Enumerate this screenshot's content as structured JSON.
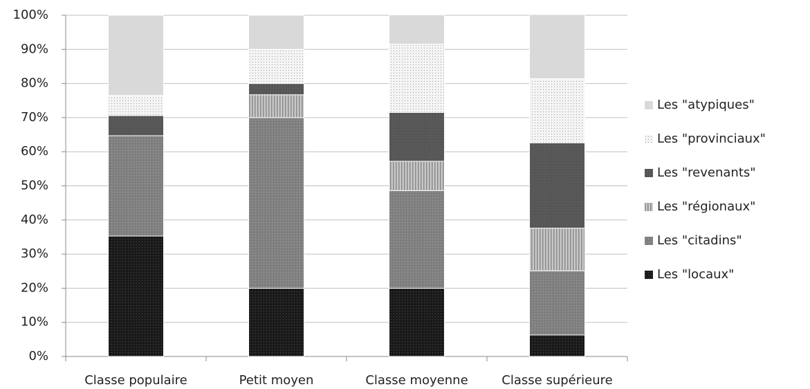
{
  "chart_data": {
    "type": "stacked_bar",
    "categories": [
      "Classe populaire",
      "Petit moyen",
      "Classe moyenne",
      "Classe supérieure"
    ],
    "series": [
      {
        "name": "Les \"locaux\"",
        "color": "#1a1a1a",
        "values": [
          35.3,
          20,
          20,
          6.3
        ]
      },
      {
        "name": "Les \"citadins\"",
        "color": "#7f7f7f",
        "values": [
          29.4,
          50,
          28.6,
          18.8
        ]
      },
      {
        "name": "Les \"régionaux\"",
        "color": "#c8c8c8",
        "values": [
          0,
          6.7,
          8.6,
          12.5
        ]
      },
      {
        "name": "Les \"revenants\"",
        "color": "#595959",
        "values": [
          5.9,
          3.3,
          14.3,
          25
        ]
      },
      {
        "name": "Les \"provinciaux\"",
        "color": "#f4f4f4",
        "values": [
          5.9,
          10,
          20,
          18.8
        ]
      },
      {
        "name": "Les \"atypiques\"",
        "color": "#d9d9d9",
        "values": [
          23.5,
          10,
          8.6,
          18.8
        ]
      }
    ],
    "ylim": [
      0,
      100
    ],
    "yticks": [
      {
        "value": 0,
        "label": "0%"
      },
      {
        "value": 10,
        "label": "10%"
      },
      {
        "value": 20,
        "label": "20%"
      },
      {
        "value": 30,
        "label": "30%"
      },
      {
        "value": 40,
        "label": "40%"
      },
      {
        "value": 50,
        "label": "50%"
      },
      {
        "value": 60,
        "label": "60%"
      },
      {
        "value": 70,
        "label": "70%"
      },
      {
        "value": 80,
        "label": "80%"
      },
      {
        "value": 90,
        "label": "90%"
      },
      {
        "value": 100,
        "label": "100%"
      }
    ],
    "grid": true,
    "legend": "right"
  }
}
